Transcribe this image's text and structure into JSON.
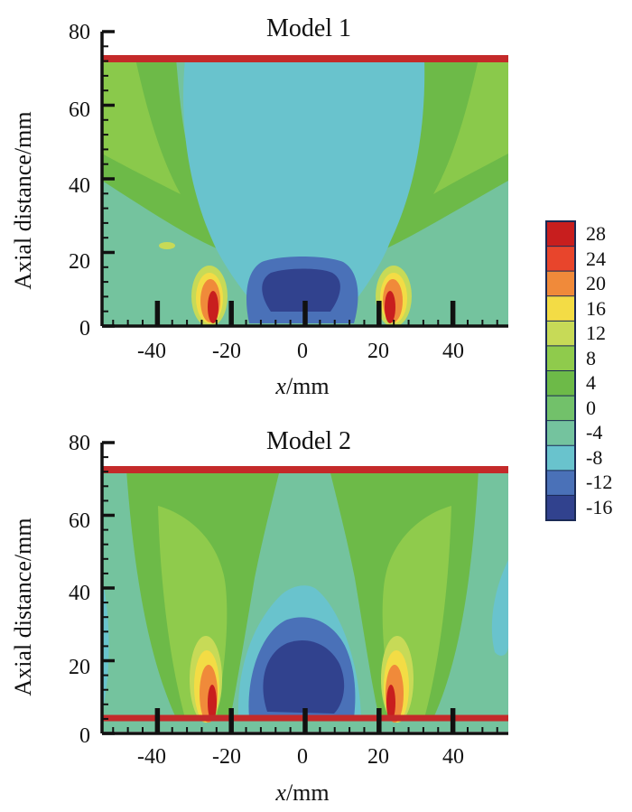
{
  "chart_data": [
    {
      "type": "contour",
      "title": "Model 1",
      "xlabel_var": "x",
      "xlabel_unit": "/mm",
      "ylabel": "Axial distance/mm",
      "xlim": [
        -55,
        55
      ],
      "ylim": [
        0,
        80
      ],
      "x_ticks": [
        -40,
        -20,
        0,
        20,
        40
      ],
      "y_ticks": [
        0,
        20,
        40,
        60,
        80
      ],
      "field_top": 72,
      "boundary_lines_y": [
        72
      ],
      "nozzle_x": [
        -40,
        -20,
        0,
        20,
        40
      ],
      "features": [
        {
          "name": "central-low-velocity-region",
          "cx": 0,
          "cy": 40,
          "rx": 30,
          "ry": 40,
          "value": -8
        },
        {
          "name": "central-core",
          "cx": 0,
          "cy": 12,
          "rx": 12,
          "ry": 9,
          "value": -16
        },
        {
          "name": "left-jet-core",
          "cx": -23,
          "cy": 9,
          "rx": 4,
          "ry": 9,
          "value": 28
        },
        {
          "name": "right-jet-core",
          "cx": 23,
          "cy": 9,
          "rx": 4,
          "ry": 9,
          "value": 28
        }
      ]
    },
    {
      "type": "contour",
      "title": "Model 2",
      "xlabel_var": "x",
      "xlabel_unit": "/mm",
      "ylabel": "Axial distance/mm",
      "xlim": [
        -55,
        55
      ],
      "ylim": [
        0,
        80
      ],
      "x_ticks": [
        -40,
        -20,
        0,
        20,
        40
      ],
      "y_ticks": [
        0,
        20,
        40,
        60,
        80
      ],
      "field_top": 72,
      "boundary_lines_y": [
        72,
        5
      ],
      "nozzle_x": [
        -40,
        -20,
        0,
        20,
        40
      ],
      "features": [
        {
          "name": "left-plume",
          "cx": -22,
          "cy": 35,
          "rx": 15,
          "ry": 35,
          "value": 8
        },
        {
          "name": "right-plume",
          "cx": 22,
          "cy": 35,
          "rx": 15,
          "ry": 35,
          "value": 8
        },
        {
          "name": "central-core",
          "cx": -1,
          "cy": 18,
          "rx": 14,
          "ry": 14,
          "value": -16
        },
        {
          "name": "left-jet-core",
          "cx": -23,
          "cy": 16,
          "rx": 4,
          "ry": 12,
          "value": 28
        },
        {
          "name": "right-jet-core",
          "cx": 23,
          "cy": 16,
          "rx": 4,
          "ry": 12,
          "value": 28
        }
      ]
    }
  ],
  "colorbar": {
    "levels": [
      28,
      24,
      20,
      16,
      12,
      8,
      4,
      0,
      -4,
      -8,
      -12,
      -16
    ],
    "labels": [
      "28",
      "24",
      "20",
      "16",
      "12",
      "8",
      "4",
      "0",
      "-4",
      "-8",
      "-12",
      "-16"
    ],
    "colors": [
      "#c81e1e",
      "#e8452c",
      "#f08a3a",
      "#f3dc45",
      "#c7da57",
      "#8fcb4c",
      "#6dba48",
      "#72c16a",
      "#74c39e",
      "#69c3cd",
      "#4a71b8",
      "#31428e"
    ]
  },
  "palette": {
    "boundary": "#c42a2a",
    "axis": "#111111",
    "field_background": "#74c39e"
  }
}
